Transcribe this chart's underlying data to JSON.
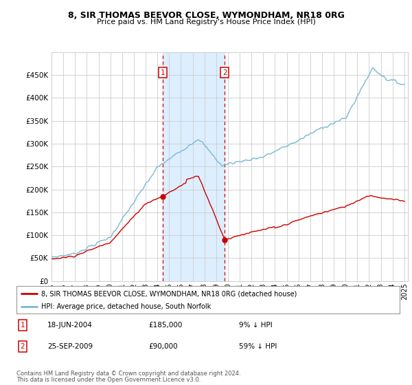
{
  "title": "8, SIR THOMAS BEEVOR CLOSE, WYMONDHAM, NR18 0RG",
  "subtitle": "Price paid vs. HM Land Registry's House Price Index (HPI)",
  "hpi_color": "#7ab8d4",
  "price_color": "#cc0000",
  "sale1_year": 2004.46,
  "sale1_price": 185000,
  "sale2_year": 2009.73,
  "sale2_price": 90000,
  "legend_line1": "8, SIR THOMAS BEEVOR CLOSE, WYMONDHAM, NR18 0RG (detached house)",
  "legend_line2": "HPI: Average price, detached house, South Norfolk",
  "sale1_date": "18-JUN-2004",
  "sale1_pct": "9% ↓ HPI",
  "sale2_date": "25-SEP-2009",
  "sale2_pct": "59% ↓ HPI",
  "footer1": "Contains HM Land Registry data © Crown copyright and database right 2024.",
  "footer2": "This data is licensed under the Open Government Licence v3.0.",
  "background_color": "#ffffff",
  "shade_color": "#ddeeff",
  "grid_color": "#cccccc",
  "ylim": [
    0,
    500000
  ],
  "xlim_start": 1995,
  "xlim_end": 2025.3
}
